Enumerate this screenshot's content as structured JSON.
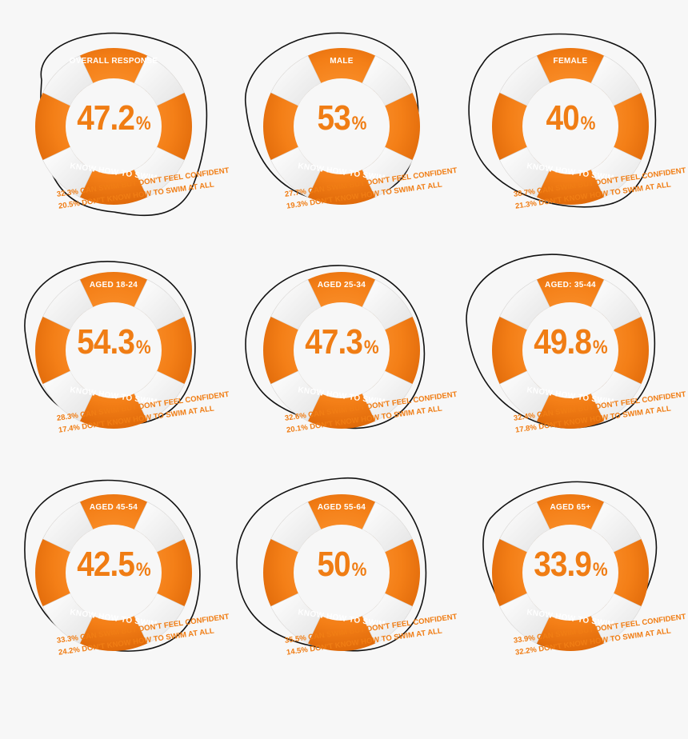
{
  "footer_label": "KNOW HOW TO SWIM",
  "line1_suffix": "CAN SWIM BUT DON'T FEEL CONFIDENT",
  "line2_suffix": "DON'T KNOW HOW TO SWIM AT ALL",
  "colors": {
    "orange": "#f07d14",
    "white_band": "#f2f2f2",
    "rope": "#111111",
    "background": "#f7f7f7"
  },
  "rings": [
    {
      "label": "OVERALL RESPONSE",
      "value": "47.2",
      "confident_pct": "32.3",
      "cannot_pct": "20.5"
    },
    {
      "label": "MALE",
      "value": "53",
      "confident_pct": "27.7",
      "cannot_pct": "19.3"
    },
    {
      "label": "FEMALE",
      "value": "40",
      "confident_pct": "38.7",
      "cannot_pct": "21.3"
    },
    {
      "label": "AGED 18-24",
      "value": "54.3",
      "confident_pct": "28.3",
      "cannot_pct": "17.4"
    },
    {
      "label": "AGED 25-34",
      "value": "47.3",
      "confident_pct": "32.6",
      "cannot_pct": "20.1"
    },
    {
      "label": "AGED: 35-44",
      "value": "49.8",
      "confident_pct": "32.4",
      "cannot_pct": "17.8"
    },
    {
      "label": "AGED 45-54",
      "value": "42.5",
      "confident_pct": "33.3",
      "cannot_pct": "24.2"
    },
    {
      "label": "AGED 55-64",
      "value": "50",
      "confident_pct": "35.5",
      "cannot_pct": "14.5"
    },
    {
      "label": "AGED 65+",
      "value": "33.9",
      "confident_pct": "33.9",
      "cannot_pct": "32.2"
    }
  ],
  "percent_sign": "%"
}
